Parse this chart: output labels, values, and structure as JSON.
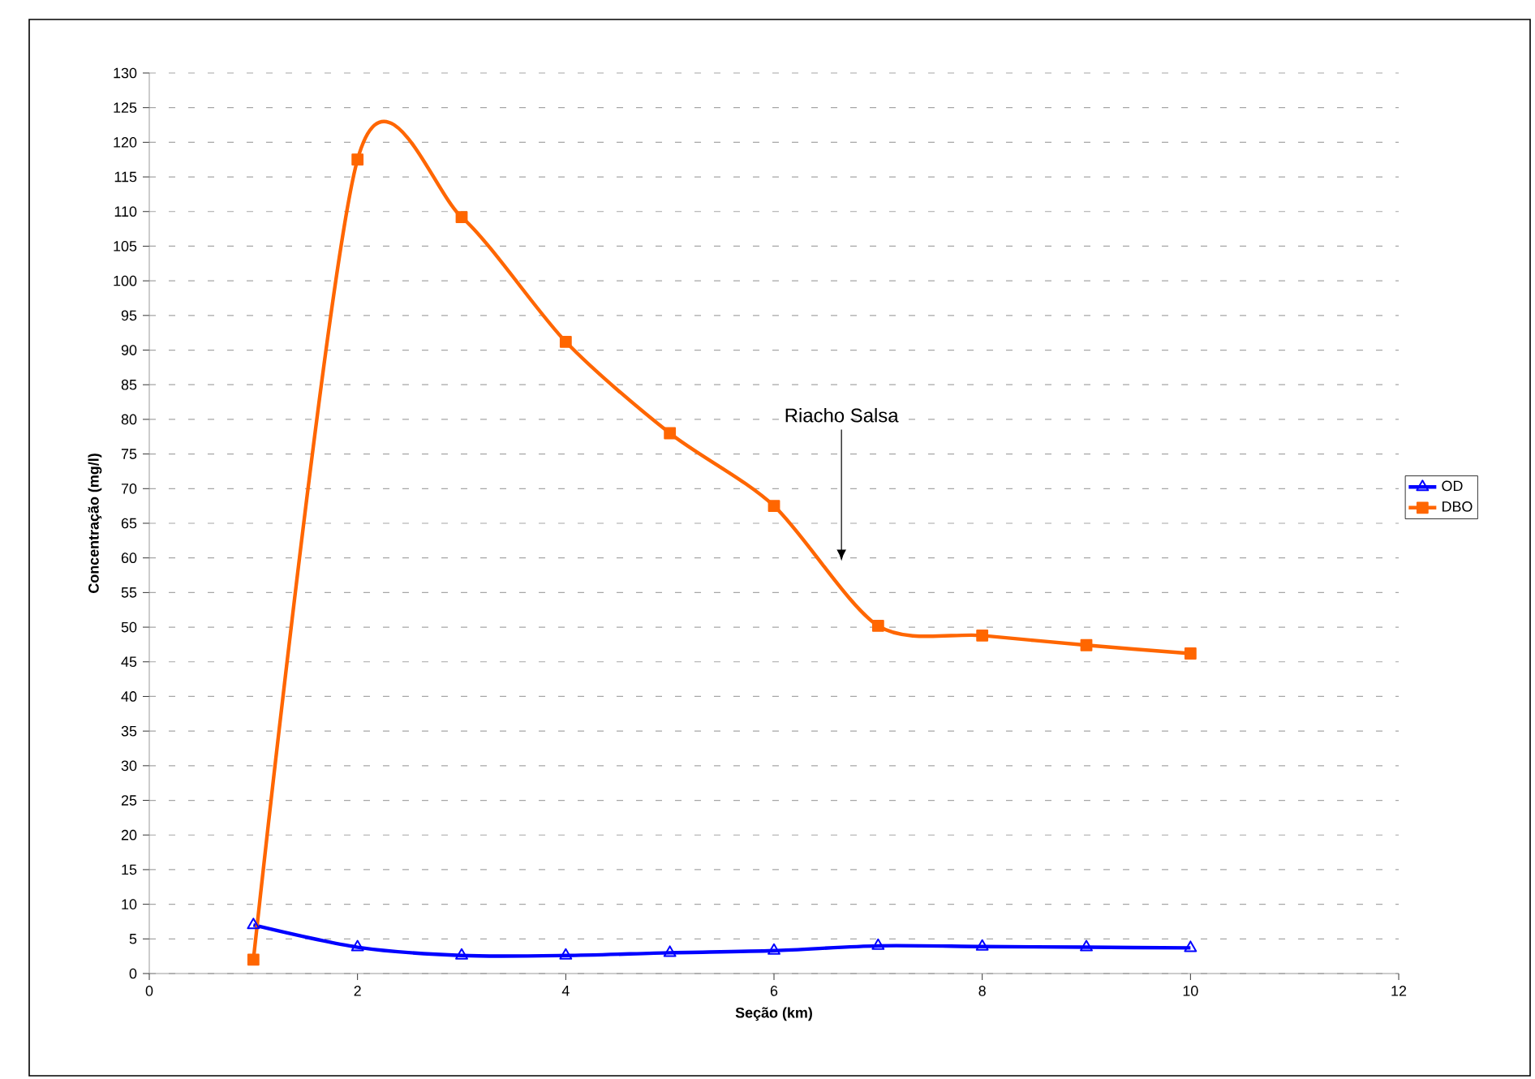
{
  "chart_data": {
    "type": "line",
    "xlabel": "Seção (km)",
    "ylabel": "Concentração (mg/l)",
    "xlim": [
      0,
      12
    ],
    "xticks": [
      0,
      2,
      4,
      6,
      8,
      10,
      12
    ],
    "ylim": [
      0,
      130
    ],
    "yticks": [
      0,
      5,
      10,
      15,
      20,
      25,
      30,
      35,
      40,
      45,
      50,
      55,
      60,
      65,
      70,
      75,
      80,
      85,
      90,
      95,
      100,
      105,
      110,
      115,
      120,
      125,
      130
    ],
    "grid": "y",
    "legend": "right",
    "line_style": "solid",
    "x": [
      1,
      2,
      3,
      4,
      5,
      6,
      7,
      8,
      9,
      10
    ],
    "series": [
      {
        "name": "OD",
        "color": "#0000ff",
        "marker": "triangle",
        "values": [
          7,
          3.8,
          2.6,
          2.6,
          3,
          3.3,
          4,
          3.9,
          3.8,
          3.7
        ]
      },
      {
        "name": "DBO",
        "color": "#ff6600",
        "marker": "square",
        "values": [
          2,
          117.5,
          109.2,
          91.2,
          78,
          67.5,
          50.2,
          48.8,
          47.4,
          46.2
        ]
      }
    ],
    "annotations": [
      "Riacho Salsa"
    ]
  }
}
